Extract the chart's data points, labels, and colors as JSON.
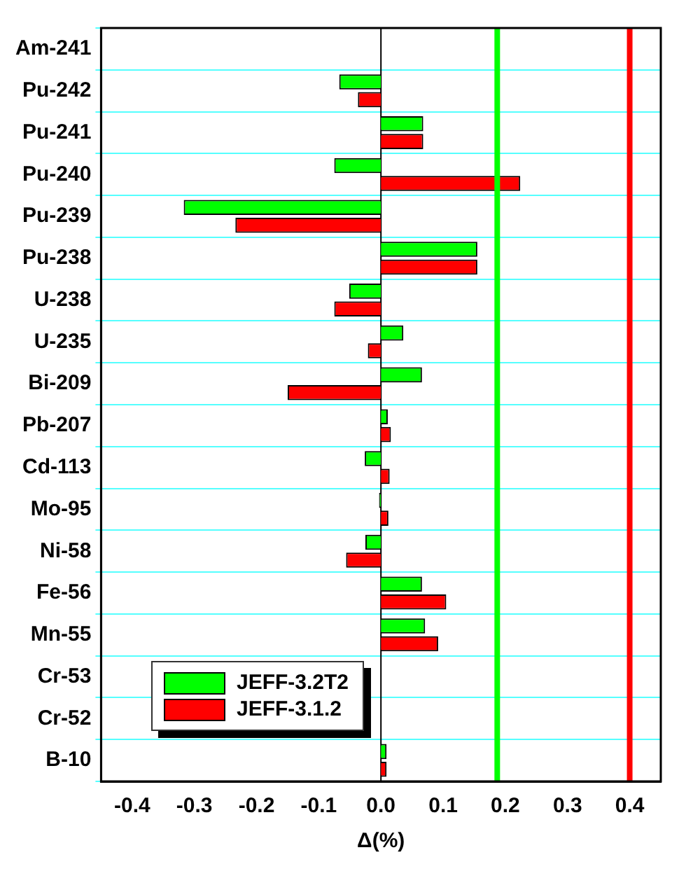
{
  "chart_data": {
    "type": "bar",
    "orientation": "horizontal",
    "xlabel": "Δ(%)",
    "categories": [
      "Am-241",
      "Pu-242",
      "Pu-241",
      "Pu-240",
      "Pu-239",
      "Pu-238",
      "U-238",
      "U-235",
      "Bi-209",
      "Pb-207",
      "Cd-113",
      "Mo-95",
      "Ni-58",
      "Fe-56",
      "Mn-55",
      "Cr-53",
      "Cr-52",
      "B-10"
    ],
    "series": [
      {
        "name": "JEFF-3.2T2",
        "color": "#00ff00",
        "values": [
          null,
          -0.067,
          0.068,
          -0.075,
          -0.317,
          0.155,
          -0.051,
          0.036,
          0.066,
          0.011,
          -0.026,
          -0.003,
          -0.025,
          0.066,
          0.071,
          null,
          null,
          0.009
        ]
      },
      {
        "name": "JEFF-3.1.2",
        "color": "#ff0000",
        "values": [
          null,
          -0.037,
          0.068,
          0.224,
          -0.234,
          0.155,
          -0.075,
          -0.021,
          -0.15,
          0.016,
          0.014,
          0.012,
          -0.056,
          0.105,
          0.092,
          null,
          null,
          0.009
        ]
      }
    ],
    "xlim": [
      -0.45,
      0.45
    ],
    "xticks": [
      -0.4,
      -0.3,
      -0.2,
      -0.1,
      {
        "value": 0,
        "label": "0.0"
      },
      0.1,
      0.2,
      0.3,
      0.4
    ],
    "ref_lines": [
      {
        "axis": "x",
        "value": 0.187,
        "color": "#00ff00"
      },
      {
        "axis": "x",
        "value": 0.4,
        "color": "#ff0000"
      }
    ],
    "grid": "y",
    "legend": "bottom left"
  }
}
